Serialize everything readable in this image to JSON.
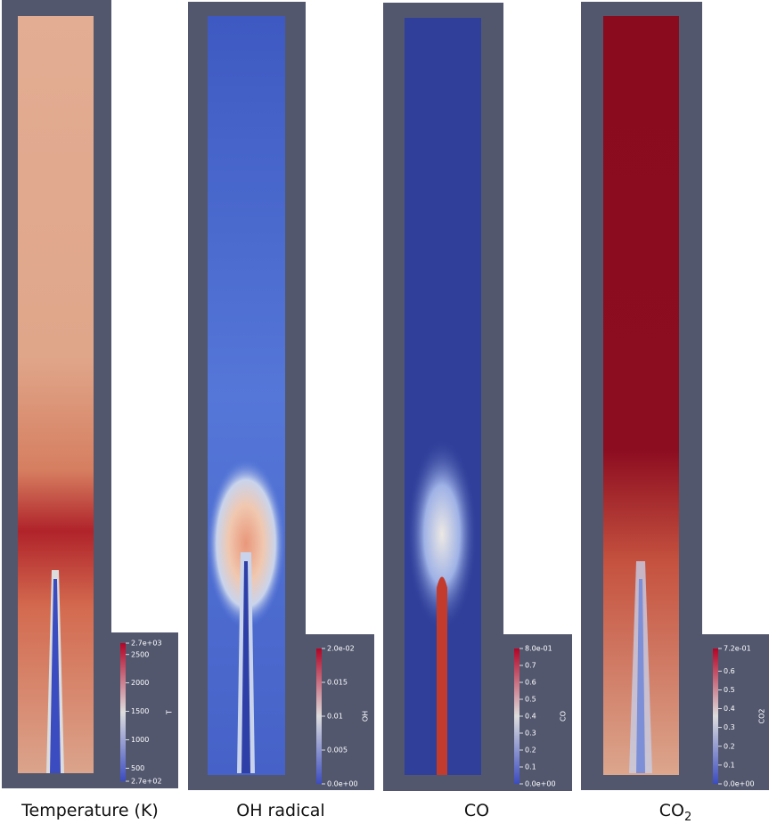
{
  "panels": [
    {
      "caption": "Temperature (K)",
      "colorbar": {
        "title": "T",
        "ticks": [
          {
            "value": 2700,
            "label": "2.7e+03"
          },
          2500,
          2000,
          1500,
          1000,
          500,
          {
            "value": 270,
            "label": "2.7e+02"
          }
        ]
      }
    },
    {
      "caption": "OH radical",
      "colorbar": {
        "title": "OH",
        "ticks": [
          {
            "value": 0.02,
            "label": "2.0e-02"
          },
          0.015,
          0.01,
          0.005,
          {
            "value": 0,
            "label": "0.0e+00"
          }
        ]
      }
    },
    {
      "caption": "CO",
      "colorbar": {
        "title": "CO",
        "ticks": [
          {
            "value": 0.8,
            "label": "8.0e-01"
          },
          0.7,
          0.6,
          0.5,
          0.4,
          0.3,
          0.2,
          0.1,
          {
            "value": 0,
            "label": "0.0e+00"
          }
        ]
      }
    },
    {
      "caption": "CO",
      "caption_sub": "2",
      "colorbar": {
        "title": "CO2",
        "ticks": [
          {
            "value": 0.72,
            "label": "7.2e-01"
          },
          0.6,
          0.5,
          0.4,
          0.3,
          0.2,
          0.1,
          {
            "value": 0,
            "label": "0.0e+00"
          }
        ]
      }
    }
  ]
}
